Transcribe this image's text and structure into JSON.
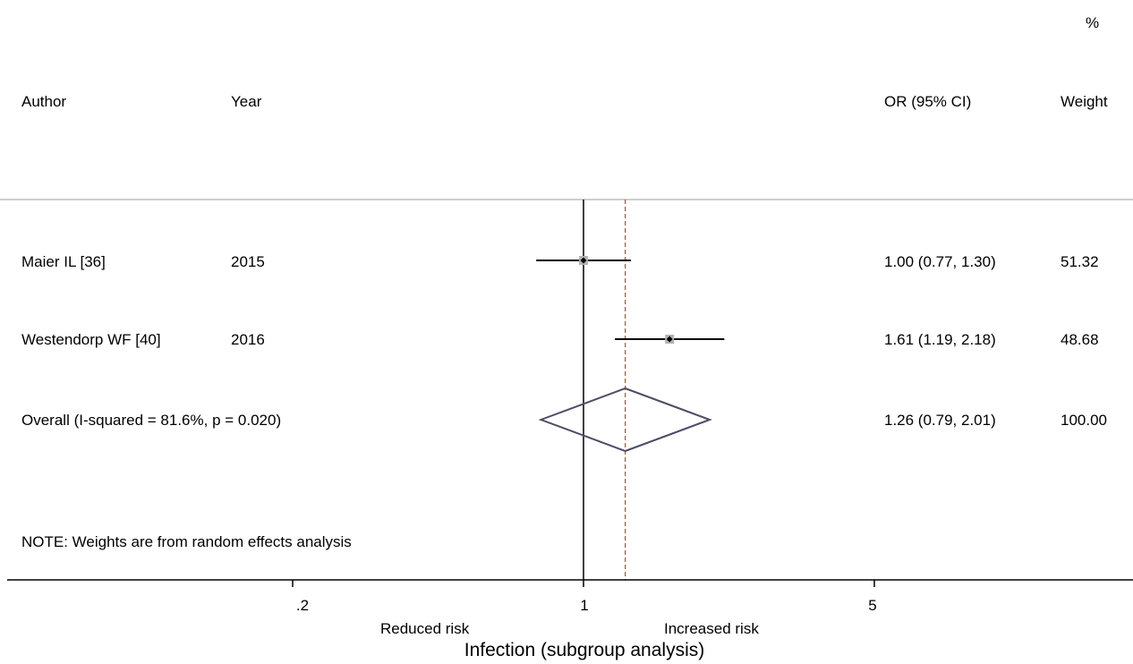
{
  "chart_data": {
    "type": "forest",
    "header": {
      "author": "Author",
      "year": "Year",
      "effect": "OR (95% CI)",
      "weight_top": "%",
      "weight": "Weight"
    },
    "studies": [
      {
        "author": "Maier IL [36]",
        "year": "2015",
        "or": 1.0,
        "ci": [
          0.77,
          1.3
        ],
        "or_text": "1.00 (0.77, 1.30)",
        "weight": "51.32"
      },
      {
        "author": "Westendorp WF [40]",
        "year": "2016",
        "or": 1.61,
        "ci": [
          1.19,
          2.18
        ],
        "or_text": "1.61 (1.19, 2.18)",
        "weight": "48.68"
      }
    ],
    "overall": {
      "label": "Overall  (I-squared = 81.6%, p = 0.020)",
      "or": 1.26,
      "ci": [
        0.79,
        2.01
      ],
      "or_text": "1.26 (0.79, 2.01)",
      "weight": "100.00"
    },
    "note": "NOTE: Weights are from random effects analysis",
    "x_scale": "log",
    "x_ticks": [
      {
        "value": 0.2,
        "label": ".2"
      },
      {
        "value": 1,
        "label": "1"
      },
      {
        "value": 5,
        "label": "5"
      }
    ],
    "null_value": 1,
    "favours_left": "Reduced risk",
    "favours_right": "Increased risk",
    "xlabel": "Infection (subgroup analysis)",
    "colors": {
      "line": "#000000",
      "marker_box": "#b3b3b3",
      "diamond": "#4d4d66",
      "dashed": "#a0522d",
      "separator": "#bdbdbd"
    }
  }
}
